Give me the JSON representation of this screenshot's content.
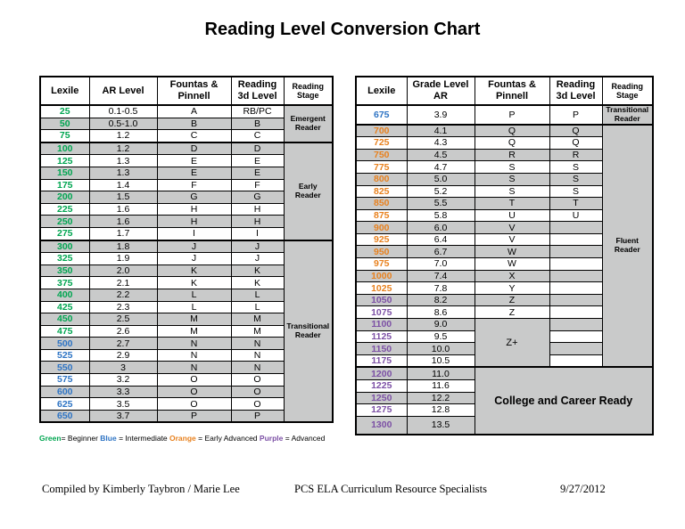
{
  "title": "Reading Level Conversion Chart",
  "colors": {
    "green": "#00A550",
    "blue": "#2E74C4",
    "orange": "#E8811E",
    "purple": "#7C50A5",
    "row_gray": "#C9CACA"
  },
  "left_table": {
    "headers": [
      "Lexile",
      "AR Level",
      "Fountas & Pinnell",
      "Reading 3d Level",
      "Reading Stage"
    ],
    "rows": [
      {
        "lexile": "25",
        "c": "green",
        "ar": "0.1-0.5",
        "fp": "A",
        "r3d": "RB/PC"
      },
      {
        "lexile": "50",
        "c": "green",
        "ar": "0.5-1.0",
        "fp": "B",
        "r3d": "B"
      },
      {
        "lexile": "75",
        "c": "green",
        "ar": "1.2",
        "fp": "C",
        "r3d": "C"
      },
      {
        "lexile": "100",
        "c": "green",
        "ar": "1.2",
        "fp": "D",
        "r3d": "D"
      },
      {
        "lexile": "125",
        "c": "green",
        "ar": "1.3",
        "fp": "E",
        "r3d": "E"
      },
      {
        "lexile": "150",
        "c": "green",
        "ar": "1.3",
        "fp": "E",
        "r3d": "E"
      },
      {
        "lexile": "175",
        "c": "green",
        "ar": "1.4",
        "fp": "F",
        "r3d": "F"
      },
      {
        "lexile": "200",
        "c": "green",
        "ar": "1.5",
        "fp": "G",
        "r3d": "G"
      },
      {
        "lexile": "225",
        "c": "green",
        "ar": "1.6",
        "fp": "H",
        "r3d": "H"
      },
      {
        "lexile": "250",
        "c": "green",
        "ar": "1.6",
        "fp": "H",
        "r3d": "H"
      },
      {
        "lexile": "275",
        "c": "green",
        "ar": "1.7",
        "fp": "I",
        "r3d": "I"
      },
      {
        "lexile": "300",
        "c": "green",
        "ar": "1.8",
        "fp": "J",
        "r3d": "J"
      },
      {
        "lexile": "325",
        "c": "green",
        "ar": "1.9",
        "fp": "J",
        "r3d": "J"
      },
      {
        "lexile": "350",
        "c": "green",
        "ar": "2.0",
        "fp": "K",
        "r3d": "K"
      },
      {
        "lexile": "375",
        "c": "green",
        "ar": "2.1",
        "fp": "K",
        "r3d": "K"
      },
      {
        "lexile": "400",
        "c": "green",
        "ar": "2.2",
        "fp": "L",
        "r3d": "L"
      },
      {
        "lexile": "425",
        "c": "green",
        "ar": "2.3",
        "fp": "L",
        "r3d": "L"
      },
      {
        "lexile": "450",
        "c": "green",
        "ar": "2.5",
        "fp": "M",
        "r3d": "M"
      },
      {
        "lexile": "475",
        "c": "green",
        "ar": "2.6",
        "fp": "M",
        "r3d": "M"
      },
      {
        "lexile": "500",
        "c": "blue",
        "ar": "2.7",
        "fp": "N",
        "r3d": "N"
      },
      {
        "lexile": "525",
        "c": "blue",
        "ar": "2.9",
        "fp": "N",
        "r3d": "N"
      },
      {
        "lexile": "550",
        "c": "blue",
        "ar": "3",
        "fp": "N",
        "r3d": "N"
      },
      {
        "lexile": "575",
        "c": "blue",
        "ar": "3.2",
        "fp": "O",
        "r3d": "O"
      },
      {
        "lexile": "600",
        "c": "blue",
        "ar": "3.3",
        "fp": "O",
        "r3d": "O"
      },
      {
        "lexile": "625",
        "c": "blue",
        "ar": "3.5",
        "fp": "O",
        "r3d": "O"
      },
      {
        "lexile": "650",
        "c": "blue",
        "ar": "3.7",
        "fp": "P",
        "r3d": "P"
      }
    ],
    "stage_spans": [
      {
        "label": "Emergent Reader",
        "start": 0,
        "rows": 3
      },
      {
        "label": "Early Reader",
        "start": 3,
        "rows": 8
      },
      {
        "label": "Transitional Reader",
        "start": 11,
        "rows": 15
      }
    ],
    "group_breaks": [
      3,
      11
    ]
  },
  "right_table": {
    "headers": [
      "Lexile",
      "Grade Level AR",
      "Fountas & Pinnell",
      "Reading 3d Level",
      "Reading Stage"
    ],
    "rows": [
      {
        "lexile": "675",
        "c": "blue",
        "ar": "3.9",
        "fp": "P",
        "r3d": "P"
      },
      {
        "lexile": "700",
        "c": "orange",
        "ar": "4.1",
        "fp": "Q",
        "r3d": "Q"
      },
      {
        "lexile": "725",
        "c": "orange",
        "ar": "4.3",
        "fp": "Q",
        "r3d": "Q"
      },
      {
        "lexile": "750",
        "c": "orange",
        "ar": "4.5",
        "fp": "R",
        "r3d": "R"
      },
      {
        "lexile": "775",
        "c": "orange",
        "ar": "4.7",
        "fp": "S",
        "r3d": "S"
      },
      {
        "lexile": "800",
        "c": "orange",
        "ar": "5.0",
        "fp": "S",
        "r3d": "S"
      },
      {
        "lexile": "825",
        "c": "orange",
        "ar": "5.2",
        "fp": "S",
        "r3d": "S"
      },
      {
        "lexile": "850",
        "c": "orange",
        "ar": "5.5",
        "fp": "T",
        "r3d": "T"
      },
      {
        "lexile": "875",
        "c": "orange",
        "ar": "5.8",
        "fp": "U",
        "r3d": "U"
      },
      {
        "lexile": "900",
        "c": "orange",
        "ar": "6.0",
        "fp": "V",
        "r3d": ""
      },
      {
        "lexile": "925",
        "c": "orange",
        "ar": "6.4",
        "fp": "V",
        "r3d": ""
      },
      {
        "lexile": "950",
        "c": "orange",
        "ar": "6.7",
        "fp": "W",
        "r3d": ""
      },
      {
        "lexile": "975",
        "c": "orange",
        "ar": "7.0",
        "fp": "W",
        "r3d": ""
      },
      {
        "lexile": "1000",
        "c": "orange",
        "ar": "7.4",
        "fp": "X",
        "r3d": ""
      },
      {
        "lexile": "1025",
        "c": "orange",
        "ar": "7.8",
        "fp": "Y",
        "r3d": ""
      },
      {
        "lexile": "1050",
        "c": "purple",
        "ar": "8.2",
        "fp": "Z",
        "r3d": ""
      },
      {
        "lexile": "1075",
        "c": "purple",
        "ar": "8.6",
        "fp": "Z",
        "r3d": ""
      },
      {
        "lexile": "1100",
        "c": "purple",
        "ar": "9.0",
        "fp": "",
        "r3d": ""
      },
      {
        "lexile": "1125",
        "c": "purple",
        "ar": "9.5",
        "fp": "",
        "r3d": ""
      },
      {
        "lexile": "1150",
        "c": "purple",
        "ar": "10.0",
        "fp": "",
        "r3d": ""
      },
      {
        "lexile": "1175",
        "c": "purple",
        "ar": "10.5",
        "fp": "",
        "r3d": ""
      },
      {
        "lexile": "1200",
        "c": "purple",
        "ar": "11.0"
      },
      {
        "lexile": "1225",
        "c": "purple",
        "ar": "11.6"
      },
      {
        "lexile": "1250",
        "c": "purple",
        "ar": "12.2"
      },
      {
        "lexile": "1275",
        "c": "purple",
        "ar": "12.8"
      },
      {
        "lexile": "1300",
        "c": "purple",
        "ar": "13.5"
      }
    ],
    "stage_spans": [
      {
        "label": "Transitional Reader",
        "start": 0,
        "rows": 1
      },
      {
        "label": "Fluent Reader",
        "start": 1,
        "rows": 20
      }
    ],
    "fp_merge": {
      "label": "Z+",
      "start": 17,
      "rows": 4
    },
    "ccr_merge": {
      "label": "College and Career Ready",
      "start": 21,
      "rows": 5,
      "cols": 3
    },
    "group_breaks": [
      1,
      21
    ],
    "tall_rows": [
      25
    ]
  },
  "legend": [
    {
      "text": "Green",
      "color": "green"
    },
    {
      "text": "= Beginner ",
      "color": ""
    },
    {
      "text": "Blue",
      "color": "blue"
    },
    {
      "text": " = Intermediate ",
      "color": ""
    },
    {
      "text": "Orange",
      "color": "orange"
    },
    {
      "text": " = Early Advanced ",
      "color": ""
    },
    {
      "text": "Purple",
      "color": "purple"
    },
    {
      "text": " = Advanced",
      "color": ""
    }
  ],
  "footer": {
    "left": "Compiled by Kimberly Taybron / Marie Lee",
    "center": "PCS ELA Curriculum Resource Specialists",
    "right": "9/27/2012"
  }
}
